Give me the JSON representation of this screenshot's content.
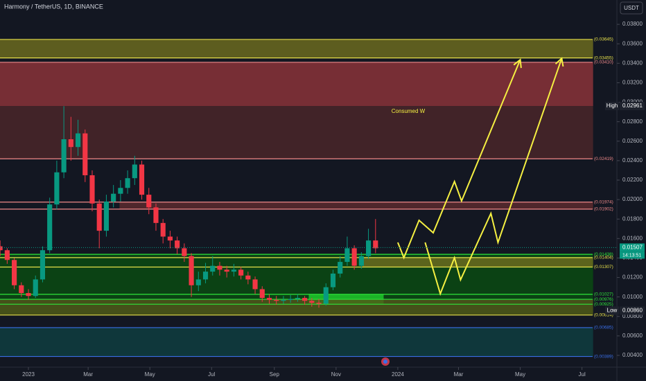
{
  "chart_data": {
    "type": "candlestick",
    "title": "Harmony / TetherUS, 1D, BINANCE",
    "currency_button": "USDT",
    "annotation": "Consumed W",
    "up_color": "#089981",
    "down_color": "#f23645",
    "xlim": [
      -28.1,
      581.5
    ],
    "ylim": [
      0.00279,
      0.0405
    ],
    "xticks": [
      {
        "value": 0,
        "label": "2023"
      },
      {
        "value": 59,
        "label": "Mar"
      },
      {
        "value": 120,
        "label": "May"
      },
      {
        "value": 181,
        "label": "Jul"
      },
      {
        "value": 243,
        "label": "Sep"
      },
      {
        "value": 304,
        "label": "Nov"
      },
      {
        "value": 365,
        "label": "2024"
      },
      {
        "value": 425,
        "label": "Mar"
      },
      {
        "value": 486,
        "label": "May"
      },
      {
        "value": 547,
        "label": "Jul"
      }
    ],
    "yticks": [
      {
        "value": 0.004,
        "label": "0.00400"
      },
      {
        "value": 0.006,
        "label": "0.00600"
      },
      {
        "value": 0.008,
        "label": "0.00800"
      },
      {
        "value": 0.01,
        "label": "0.01000"
      },
      {
        "value": 0.012,
        "label": "0.01200"
      },
      {
        "value": 0.014,
        "label": "0.01400"
      },
      {
        "value": 0.016,
        "label": "0.01600"
      },
      {
        "value": 0.018,
        "label": "0.01800"
      },
      {
        "value": 0.02,
        "label": "0.02000"
      },
      {
        "value": 0.022,
        "label": "0.02200"
      },
      {
        "value": 0.024,
        "label": "0.02400"
      },
      {
        "value": 0.026,
        "label": "0.02600"
      },
      {
        "value": 0.028,
        "label": "0.02800"
      },
      {
        "value": 0.03,
        "label": "0.03000"
      },
      {
        "value": 0.032,
        "label": "0.03200"
      },
      {
        "value": 0.034,
        "label": "0.03400"
      },
      {
        "value": 0.036,
        "label": "0.03600"
      },
      {
        "value": 0.038,
        "label": "0.03800"
      }
    ],
    "candles": {
      "x": [
        -28,
        -21,
        -14,
        -7,
        0,
        7,
        14,
        21,
        28,
        35,
        42,
        49,
        56,
        63,
        70,
        77,
        84,
        91,
        98,
        105,
        112,
        119,
        126,
        133,
        140,
        147,
        154,
        161,
        168,
        175,
        182,
        189,
        196,
        203,
        210,
        217,
        224,
        231,
        238,
        245,
        252,
        259,
        266,
        273,
        280,
        287,
        294,
        301,
        308,
        315,
        322,
        329,
        336,
        343
      ],
      "open": [
        0.0152,
        0.0148,
        0.0138,
        0.0112,
        0.0104,
        0.0101,
        0.0118,
        0.0148,
        0.0195,
        0.0228,
        0.0262,
        0.0254,
        0.0268,
        0.0225,
        0.0196,
        0.0168,
        0.0198,
        0.0206,
        0.0212,
        0.0222,
        0.0236,
        0.0205,
        0.0192,
        0.0176,
        0.0162,
        0.0158,
        0.015,
        0.0142,
        0.0112,
        0.0118,
        0.0126,
        0.0132,
        0.0128,
        0.0126,
        0.0128,
        0.0122,
        0.0118,
        0.0108,
        0.0099,
        0.0097,
        0.0096,
        0.0097,
        0.0098,
        0.0099,
        0.0096,
        0.0094,
        0.0093,
        0.011,
        0.0124,
        0.0136,
        0.015,
        0.0132,
        0.0142,
        0.0158
      ],
      "high": [
        0.0158,
        0.015,
        0.014,
        0.0115,
        0.0108,
        0.0122,
        0.0152,
        0.0202,
        0.024,
        0.0296,
        0.0285,
        0.0282,
        0.0272,
        0.023,
        0.02,
        0.0205,
        0.0215,
        0.022,
        0.023,
        0.0245,
        0.024,
        0.0212,
        0.0196,
        0.018,
        0.0168,
        0.0162,
        0.0155,
        0.0145,
        0.0126,
        0.0135,
        0.0142,
        0.0136,
        0.0132,
        0.0134,
        0.0131,
        0.0126,
        0.0121,
        0.0111,
        0.0103,
        0.0101,
        0.0101,
        0.0102,
        0.0103,
        0.0101,
        0.0099,
        0.0098,
        0.0114,
        0.0128,
        0.0142,
        0.0162,
        0.0153,
        0.0146,
        0.017,
        0.018
      ],
      "low": [
        0.0142,
        0.0134,
        0.0108,
        0.01,
        0.0097,
        0.0099,
        0.0115,
        0.0145,
        0.019,
        0.0222,
        0.024,
        0.0245,
        0.0218,
        0.0188,
        0.015,
        0.0162,
        0.0192,
        0.0198,
        0.0206,
        0.0215,
        0.02,
        0.0185,
        0.0168,
        0.0155,
        0.015,
        0.0144,
        0.0136,
        0.01,
        0.0106,
        0.0114,
        0.0122,
        0.0122,
        0.012,
        0.0121,
        0.0118,
        0.0113,
        0.0103,
        0.0095,
        0.0093,
        0.0092,
        0.0093,
        0.0094,
        0.0095,
        0.0092,
        0.009,
        0.0089,
        0.0091,
        0.0107,
        0.012,
        0.0132,
        0.0128,
        0.0129,
        0.0139,
        0.0145
      ],
      "close": [
        0.0148,
        0.0138,
        0.0112,
        0.0104,
        0.0101,
        0.0118,
        0.0148,
        0.0195,
        0.0228,
        0.0262,
        0.0254,
        0.0268,
        0.0225,
        0.0196,
        0.0168,
        0.0198,
        0.0206,
        0.0212,
        0.0222,
        0.0236,
        0.0205,
        0.0192,
        0.0176,
        0.0162,
        0.0158,
        0.015,
        0.0142,
        0.0112,
        0.0118,
        0.0126,
        0.0132,
        0.0128,
        0.0126,
        0.0128,
        0.0122,
        0.0118,
        0.0108,
        0.0099,
        0.0097,
        0.0096,
        0.0097,
        0.0098,
        0.0099,
        0.0096,
        0.0094,
        0.0093,
        0.011,
        0.0124,
        0.0136,
        0.015,
        0.0132,
        0.0142,
        0.0158,
        0.015
      ]
    },
    "zones": [
      {
        "low": 0.03455,
        "high": 0.03645,
        "from": -28.1,
        "to": 558,
        "fill": "#6b6a1f",
        "stroke": "#e6e04a"
      },
      {
        "low": 0.02961,
        "high": 0.0341,
        "from": -28.1,
        "to": 558,
        "fill": "#8a3338",
        "stroke": "#f08a8a"
      },
      {
        "low": 0.02419,
        "high": 0.02961,
        "from": -28.1,
        "to": 558,
        "fill": "#4a2629",
        "stroke": "#f08a8a"
      },
      {
        "low": 0.01902,
        "high": 0.01974,
        "from": 90,
        "to": 558,
        "fill": "#5a2a2e",
        "stroke": "#f08a8a"
      },
      {
        "low": 0.00976,
        "high": 0.01438,
        "from": -28.1,
        "to": 558,
        "fill": "#0b4a12",
        "stroke": "#2ee63a"
      },
      {
        "low": 0.01307,
        "high": 0.01404,
        "from": 330,
        "to": 558,
        "fill": "#6b6a1f",
        "stroke": "#e6e04a"
      },
      {
        "low": 0.00925,
        "high": 0.01027,
        "from": 277,
        "to": 351,
        "fill": "#1fc72a",
        "stroke": "#2ee63a"
      },
      {
        "low": 0.00814,
        "high": 0.00976,
        "from": -28.1,
        "to": 558,
        "fill": "#4f5a18",
        "stroke": "#e6e04a"
      },
      {
        "low": 0.00389,
        "high": 0.00685,
        "from": -28.1,
        "to": 558,
        "fill": "#0f3d3f",
        "stroke": "#3a6ee6"
      }
    ],
    "levels": [
      {
        "value": 0.03645,
        "label": "(0.03645)",
        "color": "#e6e04a"
      },
      {
        "value": 0.03455,
        "label": "(0.03455)",
        "color": "#e6e04a"
      },
      {
        "value": 0.0341,
        "label": "(0.03410)",
        "color": "#f08a8a"
      },
      {
        "value": 0.02419,
        "label": "(0.02419)",
        "color": "#f08a8a"
      },
      {
        "value": 0.01974,
        "label": "(0.01974)",
        "color": "#f08a8a"
      },
      {
        "value": 0.01902,
        "label": "(0.01902)",
        "color": "#f08a8a"
      },
      {
        "value": 0.01438,
        "label": "(0.01438)",
        "color": "#2ee63a"
      },
      {
        "value": 0.01404,
        "label": "(0.01404)",
        "color": "#e6e04a"
      },
      {
        "value": 0.01307,
        "label": "(0.01307)",
        "color": "#e6e04a"
      },
      {
        "value": 0.01027,
        "label": "(0.01027)",
        "color": "#2ee63a"
      },
      {
        "value": 0.00976,
        "label": "(0.00976)",
        "color": "#2ee63a"
      },
      {
        "value": 0.00925,
        "label": "(0.00925)",
        "color": "#2ee63a"
      },
      {
        "value": 0.00814,
        "label": "(0.00814)",
        "color": "#e6e04a"
      },
      {
        "value": 0.00685,
        "label": "(0.00685)",
        "color": "#3a6ee6"
      },
      {
        "value": 0.00389,
        "label": "(0.00389)",
        "color": "#3a6ee6"
      }
    ],
    "projections": [
      {
        "x": [
          365,
          371,
          386,
          400,
          421,
          428,
          486
        ],
        "price": [
          0.0156,
          0.01403,
          0.01787,
          0.01659,
          0.02186,
          0.01986,
          0.03437
        ],
        "color": "#f5f042"
      },
      {
        "x": [
          392,
          407,
          421,
          427,
          457,
          464,
          527
        ],
        "price": [
          0.0156,
          0.01033,
          0.01403,
          0.01176,
          0.01858,
          0.0156,
          0.03451
        ],
        "color": "#f5f042"
      }
    ],
    "price_tags": [
      {
        "name": "High",
        "value": 0.02961,
        "label": "0.02961",
        "color": "#1e222d"
      },
      {
        "value": 0.01507,
        "label": "0.01507",
        "color": "#089981"
      },
      {
        "name": "Low",
        "value": 0.0086,
        "label": "0.00860",
        "color": "#1e222d"
      }
    ],
    "countdown": "14:13:51"
  }
}
